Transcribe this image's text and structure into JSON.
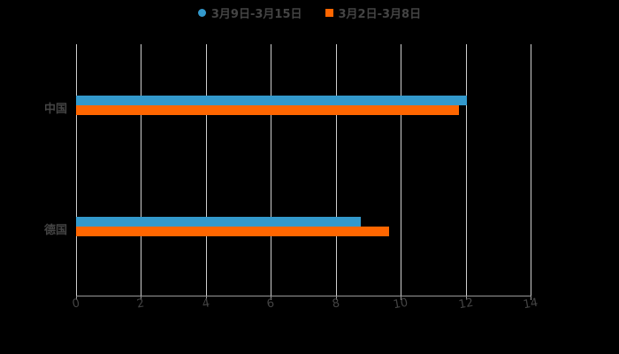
{
  "chart_data": {
    "type": "bar",
    "orientation": "horizontal",
    "title": "",
    "xlabel": "",
    "ylabel": "",
    "xlim": [
      0,
      14
    ],
    "x_ticks": [
      "0",
      "2",
      "4",
      "6",
      "8",
      "10",
      "12",
      "14"
    ],
    "categories": [
      "中国",
      "德国"
    ],
    "series": [
      {
        "name": "3月9日-3月15日",
        "color": "#3399CC",
        "values": [
          12.05,
          8.77
        ]
      },
      {
        "name": "3月2日-3月8日",
        "color": "#FF6600",
        "values": [
          11.8,
          9.64
        ]
      }
    ],
    "grid": true,
    "legend_position": "top"
  },
  "legend": [
    {
      "label": "3月9日-3月15日",
      "color": "#3399CC",
      "marker": "circle"
    },
    {
      "label": "3月2日-3月8日",
      "color": "#FF6600",
      "marker": "square"
    }
  ]
}
